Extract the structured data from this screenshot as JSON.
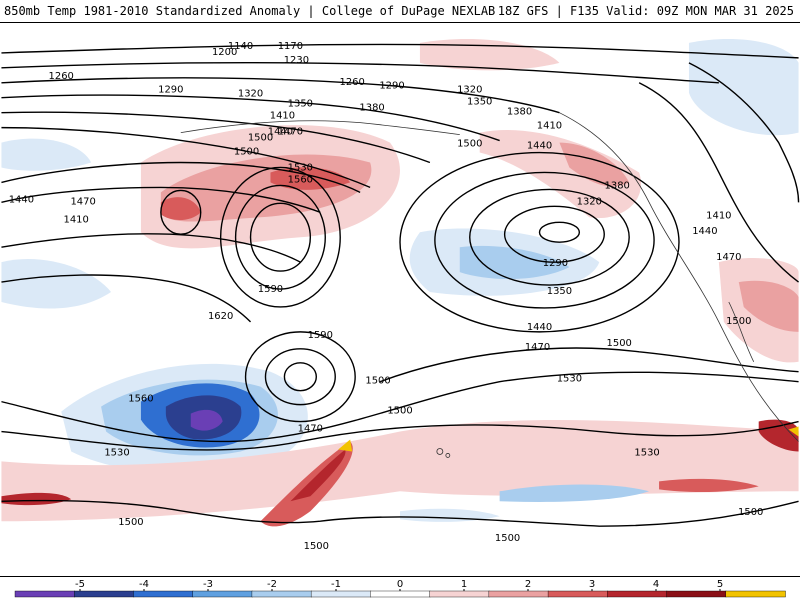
{
  "title": {
    "left": "850mb Temp 1981-2010 Standardized Anomaly | College of DuPage NEXLAB",
    "right": "18Z GFS | F135 Valid: 09Z MON MAR 31 2025"
  },
  "contour_labels": [
    "1140",
    "1170",
    "1200",
    "1230",
    "1260",
    "1260",
    "1290",
    "1290",
    "1320",
    "1320",
    "1350",
    "1350",
    "1380",
    "1380",
    "1410",
    "1410",
    "1440",
    "1440",
    "1470",
    "1470",
    "1500",
    "1500",
    "1530",
    "1560",
    "1590",
    "1620",
    "1590",
    "1500",
    "1440",
    "1410",
    "1380",
    "1320",
    "1290",
    "1350",
    "1440",
    "1470",
    "1500",
    "1500",
    "1530",
    "1560",
    "1470",
    "1500",
    "1530",
    "1530",
    "1500",
    "1500",
    "1500",
    "1500",
    "1500",
    "1410",
    "1440",
    "1470",
    "1500"
  ],
  "colorbar": {
    "ticks": [
      "-5",
      "-4",
      "-3",
      "-2",
      "-1",
      "0",
      "1",
      "2",
      "3",
      "4",
      "5"
    ],
    "colors": [
      "#6a3fb5",
      "#2b3f8f",
      "#2f6fd1",
      "#5fa0e0",
      "#a9cdee",
      "#dbe9f7",
      "#ffffff",
      "#f6d3d3",
      "#eaa1a1",
      "#d85b5b",
      "#b4262d",
      "#8a0f16",
      "#f2c300"
    ]
  },
  "anomaly_colors": {
    "strong_cold": "#6a3fb5",
    "deep_blue": "#2b3f8f",
    "blue": "#2f6fd1",
    "light_blue": "#a9cdee",
    "pale_blue": "#dbe9f7",
    "pale_red": "#f6d3d3",
    "light_red": "#eaa1a1",
    "red": "#d85b5b",
    "dark_red": "#b4262d",
    "yellow": "#f2c300"
  }
}
